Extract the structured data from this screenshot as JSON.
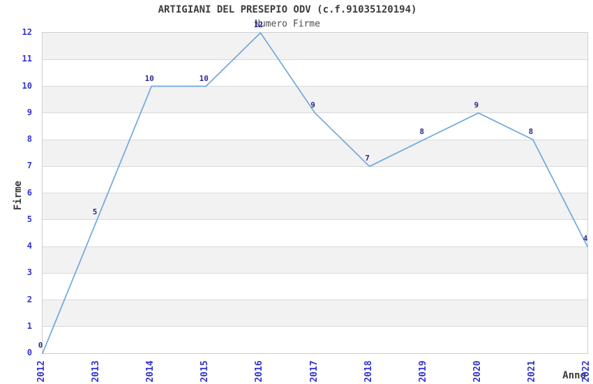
{
  "chart_data": {
    "type": "line",
    "title": "ARTIGIANI DEL PRESEPIO ODV (c.f.91035120194)",
    "subtitle": "Numero Firme",
    "xlabel": "Anno",
    "ylabel": "Firme",
    "categories": [
      "2012",
      "2013",
      "2014",
      "2015",
      "2016",
      "2017",
      "2018",
      "2019",
      "2020",
      "2021",
      "2022"
    ],
    "values": [
      0,
      5,
      10,
      10,
      12,
      9,
      7,
      8,
      9,
      8,
      4
    ],
    "yticks": [
      0,
      1,
      2,
      3,
      4,
      5,
      6,
      7,
      8,
      9,
      10,
      11,
      12
    ],
    "ylim": [
      0,
      12
    ],
    "data_labels_shown": true,
    "legend": "none",
    "grid": "horizontal alternating bands",
    "colors": {
      "line": "#6fa8dc",
      "tick_label": "#3333cc",
      "data_label": "#2b2b8f",
      "band_fill": "#f2f2f2",
      "grid_line": "#d9d9d9",
      "plot_border": "#cfcfcf",
      "title_text": "#3c3c3c",
      "subtitle_text": "#4d4d4d",
      "axis_title_text": "#3a3a3a"
    }
  }
}
